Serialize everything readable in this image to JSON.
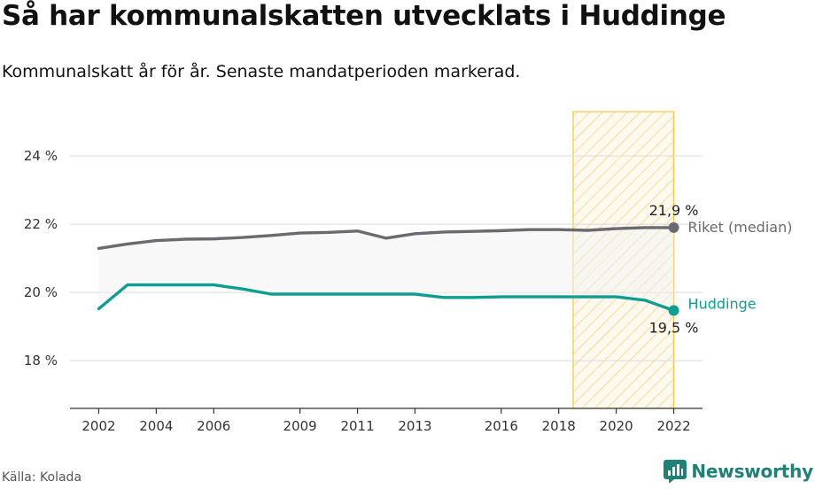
{
  "header": {
    "title": "Så har kommunalskatten utvecklats i Huddinge",
    "subtitle": "Kommunalskatt år för år. Senaste mandatperioden markerad."
  },
  "footer": {
    "source": "Källa: Kolada",
    "brand": "Newsworthy"
  },
  "colors": {
    "riket": "#6b6a70",
    "kommun": "#0e9e91",
    "highlight": "#f5c542",
    "brand": "#1e8077"
  },
  "chart_data": {
    "type": "line",
    "title": "Så har kommunalskatten utvecklats i Huddinge",
    "subtitle": "Kommunalskatt år för år. Senaste mandatperioden markerad.",
    "xlabel": "",
    "ylabel": "",
    "x": [
      2002,
      2003,
      2004,
      2005,
      2006,
      2007,
      2008,
      2009,
      2010,
      2011,
      2012,
      2013,
      2014,
      2015,
      2016,
      2017,
      2018,
      2019,
      2020,
      2021,
      2022
    ],
    "series": [
      {
        "name": "Riket (median)",
        "values": [
          21.29,
          21.42,
          21.52,
          21.56,
          21.57,
          21.61,
          21.67,
          21.74,
          21.76,
          21.8,
          21.59,
          21.72,
          21.77,
          21.79,
          21.81,
          21.84,
          21.84,
          21.82,
          21.87,
          21.9,
          21.9
        ]
      },
      {
        "name": "Huddinge",
        "values": [
          19.52,
          20.22,
          20.22,
          20.22,
          20.22,
          20.1,
          19.95,
          19.95,
          19.95,
          19.95,
          19.95,
          19.95,
          19.85,
          19.85,
          19.87,
          19.87,
          19.87,
          19.87,
          19.87,
          19.77,
          19.47
        ]
      }
    ],
    "ylim": [
      16.6,
      25.3
    ],
    "xlim": [
      2001,
      2023
    ],
    "yticks": [
      18,
      20,
      22,
      24
    ],
    "ytick_labels": [
      "18 %",
      "20 %",
      "22 %",
      "24 %"
    ],
    "xticks": [
      2002,
      2004,
      2006,
      2009,
      2011,
      2013,
      2016,
      2018,
      2020,
      2022
    ],
    "xtick_labels": [
      "2002",
      "2004",
      "2006",
      "2009",
      "2011",
      "2013",
      "2016",
      "2018",
      "2020",
      "2022"
    ],
    "highlight_period": [
      2018.5,
      2022
    ],
    "annotations": {
      "riket_value": "21,9 %",
      "kommun_value": "19,5 %",
      "riket_label": "Riket (median)",
      "kommun_label": "Huddinge"
    },
    "grid": true,
    "legend": "direct labels at line ends"
  }
}
